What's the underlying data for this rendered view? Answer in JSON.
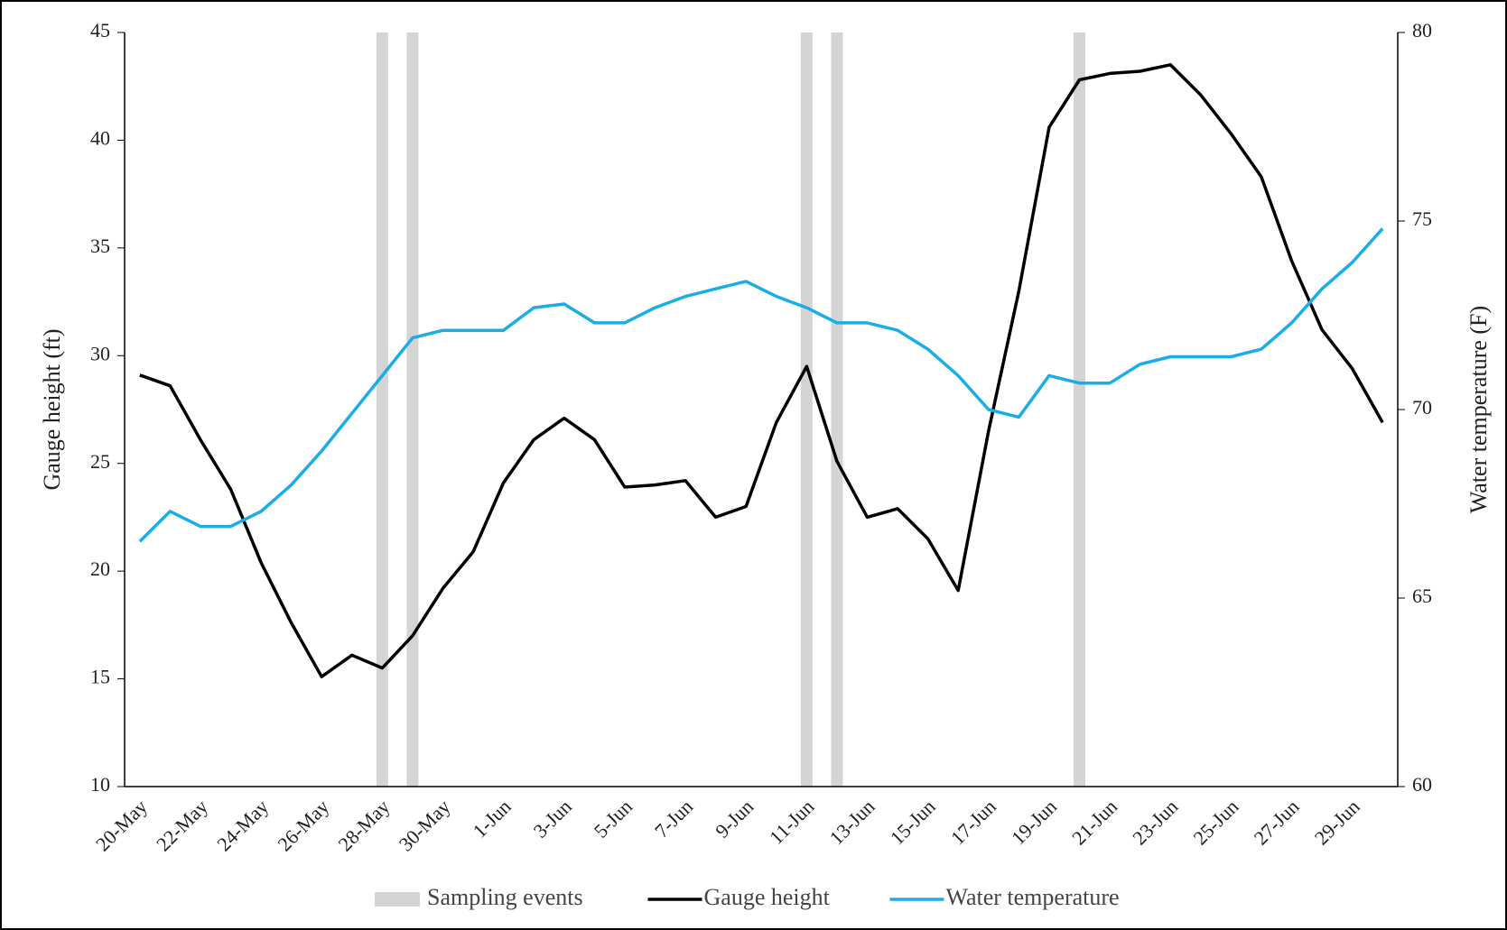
{
  "chart_data": {
    "type": "line",
    "y_label": "Gauge height (ft)",
    "y2_label": "Water temperature (F)",
    "categories": [
      "20-May",
      null,
      "22-May",
      null,
      "24-May",
      null,
      "26-May",
      null,
      "28-May",
      null,
      "30-May",
      null,
      "1-Jun",
      null,
      "3-Jun",
      null,
      "5-Jun",
      null,
      "7-Jun",
      null,
      "9-Jun",
      null,
      "11-Jun",
      null,
      "13-Jun",
      null,
      "15-Jun",
      null,
      "17-Jun",
      null,
      "19-Jun",
      null,
      "21-Jun",
      null,
      "23-Jun",
      null,
      "25-Jun",
      null,
      "27-Jun",
      null,
      "29-Jun",
      null
    ],
    "series": [
      {
        "name": "Sampling events",
        "type": "bar",
        "color": "#d4d4d4",
        "values": [
          null,
          null,
          null,
          null,
          null,
          null,
          null,
          null,
          45,
          45,
          null,
          null,
          null,
          null,
          null,
          null,
          null,
          null,
          null,
          null,
          null,
          null,
          45,
          45,
          null,
          null,
          null,
          null,
          null,
          null,
          null,
          45,
          null,
          null,
          null,
          null,
          null,
          null,
          null,
          null,
          null,
          null
        ]
      },
      {
        "name": "Gauge height",
        "type": "line",
        "color": "#000000",
        "values": [
          29.1,
          28.6,
          26.1,
          23.8,
          20.4,
          17.6,
          15.1,
          16.1,
          15.5,
          17.0,
          19.2,
          20.9,
          24.1,
          26.1,
          27.1,
          26.1,
          23.9,
          24.0,
          24.2,
          22.5,
          23.0,
          26.9,
          29.5,
          25.1,
          22.5,
          22.9,
          21.5,
          19.1,
          26.5,
          33.0,
          40.6,
          42.8,
          43.1,
          43.2,
          43.5,
          42.1,
          40.3,
          38.3,
          34.4,
          31.2,
          29.4,
          26.9
        ]
      },
      {
        "name": "Water temperature",
        "type": "line",
        "axis": "y2",
        "color": "#1aade6",
        "values": [
          66.5,
          67.3,
          66.9,
          66.9,
          67.3,
          68.0,
          68.9,
          69.9,
          70.9,
          71.9,
          72.1,
          72.1,
          72.1,
          72.7,
          72.8,
          72.3,
          72.3,
          72.7,
          73.0,
          73.2,
          73.4,
          73.0,
          72.7,
          72.3,
          72.3,
          72.1,
          71.6,
          70.9,
          70.0,
          69.8,
          70.9,
          70.7,
          70.7,
          71.2,
          71.4,
          71.4,
          71.4,
          71.6,
          72.3,
          73.2,
          73.9,
          74.8
        ]
      }
    ],
    "ylim": [
      10,
      45
    ],
    "yticks": [
      10,
      15,
      20,
      25,
      30,
      35,
      40,
      45
    ],
    "y2lim": [
      60,
      80
    ],
    "y2ticks": [
      60,
      65,
      70,
      75,
      80
    ],
    "legend": "bottom",
    "grid": false
  }
}
